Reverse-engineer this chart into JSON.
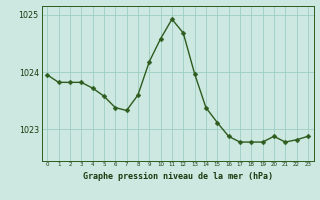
{
  "x": [
    0,
    1,
    2,
    3,
    4,
    5,
    6,
    7,
    8,
    9,
    10,
    11,
    12,
    13,
    14,
    15,
    16,
    17,
    18,
    19,
    20,
    21,
    22,
    23
  ],
  "y": [
    1023.95,
    1023.82,
    1023.82,
    1023.82,
    1023.72,
    1023.58,
    1023.38,
    1023.33,
    1023.6,
    1024.18,
    1024.58,
    1024.92,
    1024.68,
    1023.97,
    1023.38,
    1023.12,
    1022.88,
    1022.78,
    1022.78,
    1022.78,
    1022.88,
    1022.78,
    1022.82,
    1022.88
  ],
  "line_color": "#2d5c1e",
  "marker_color": "#2d5c1e",
  "bg_color": "#cce8e0",
  "grid_color": "#9ecec4",
  "xlabel": "Graphe pression niveau de la mer (hPa)",
  "xlabel_color": "#1a3a10",
  "tick_color": "#1a3a10",
  "ylim": [
    1022.45,
    1025.15
  ],
  "yticks": [
    1023,
    1024,
    1025
  ],
  "xticks": [
    0,
    1,
    2,
    3,
    4,
    5,
    6,
    7,
    8,
    9,
    10,
    11,
    12,
    13,
    14,
    15,
    16,
    17,
    18,
    19,
    20,
    21,
    22,
    23
  ],
  "xtick_labels": [
    "0",
    "1",
    "2",
    "3",
    "4",
    "5",
    "6",
    "7",
    "8",
    "9",
    "10",
    "11",
    "12",
    "13",
    "14",
    "15",
    "16",
    "17",
    "18",
    "19",
    "20",
    "21",
    "22",
    "23"
  ],
  "line_width": 1.0,
  "marker_size": 2.5,
  "outer_bg": "#cce8e0",
  "spine_color": "#2d5c1e"
}
